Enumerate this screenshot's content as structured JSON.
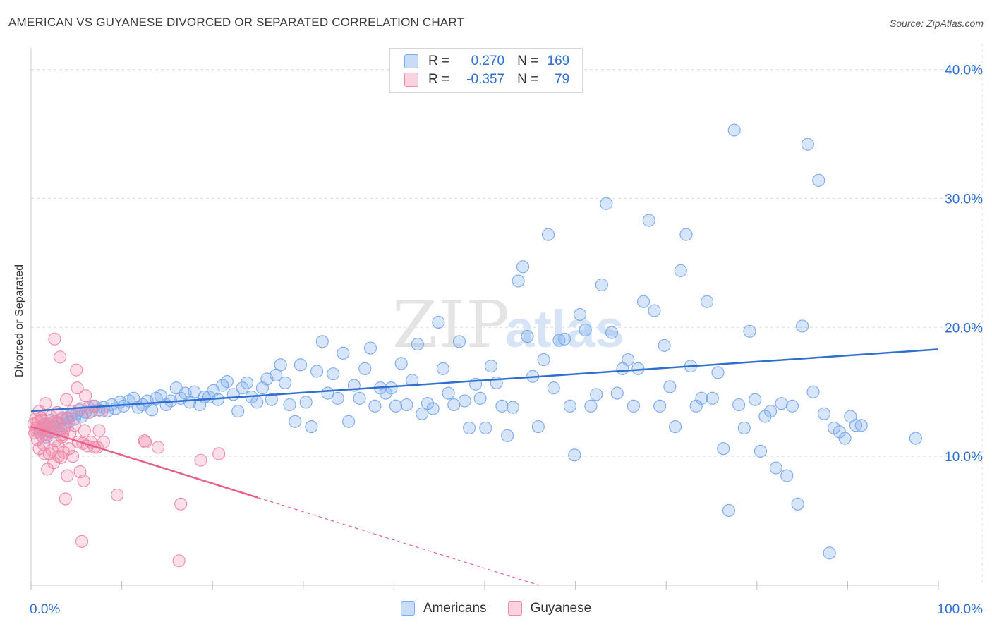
{
  "title": "AMERICAN VS GUYANESE DIVORCED OR SEPARATED CORRELATION CHART",
  "source": "Source: ZipAtlas.com",
  "watermark": {
    "zip": "ZIP",
    "atlas": "atlas"
  },
  "colors": {
    "blue": "#7aaaf0",
    "blue_line": "#2f6fd0",
    "pink": "#f08aaa",
    "pink_line": "#e8608a",
    "grid": "#dddddd"
  },
  "stats": [
    {
      "key": "R =",
      "r": "0.270",
      "nk": "N =",
      "n": "169",
      "color": "#7aaaf0"
    },
    {
      "key": "R =",
      "r": "-0.357",
      "nk": "N =",
      "n": "79",
      "color": "#f08aaa"
    }
  ],
  "legend": [
    {
      "label": "Americans",
      "color": "#7aaaf0"
    },
    {
      "label": "Guyanese",
      "color": "#f08aaa"
    }
  ],
  "chart_data": {
    "type": "scatter",
    "title": "AMERICAN VS GUYANESE DIVORCED OR SEPARATED CORRELATION CHART",
    "xlabel": "",
    "ylabel": "Divorced or Separated",
    "xlim": [
      0,
      100
    ],
    "ylim": [
      0,
      42
    ],
    "x_tick_labels": [
      {
        "value": 0,
        "label": "0.0%"
      },
      {
        "value": 100,
        "label": "100.0%"
      }
    ],
    "y_tick_labels": [
      {
        "value": 10,
        "label": "10.0%"
      },
      {
        "value": 20,
        "label": "20.0%"
      },
      {
        "value": 30,
        "label": "30.0%"
      },
      {
        "value": 40,
        "label": "40.0%"
      }
    ],
    "grid": true,
    "series": [
      {
        "name": "Americans",
        "color": "#7aaaf0",
        "trend": {
          "x": [
            0,
            100
          ],
          "y": [
            13.5,
            18.3
          ],
          "dashed_from": null
        },
        "points": [
          [
            1.0,
            11.8
          ],
          [
            1.2,
            12.2
          ],
          [
            1.5,
            12.5
          ],
          [
            1.7,
            11.5
          ],
          [
            2.0,
            12.0
          ],
          [
            2.2,
            12.8
          ],
          [
            2.5,
            12.3
          ],
          [
            2.7,
            11.9
          ],
          [
            3.0,
            12.6
          ],
          [
            3.3,
            12.1
          ],
          [
            3.5,
            12.9
          ],
          [
            3.8,
            12.4
          ],
          [
            4.0,
            13.0
          ],
          [
            4.2,
            12.7
          ],
          [
            4.5,
            13.2
          ],
          [
            4.8,
            12.9
          ],
          [
            5.0,
            13.3
          ],
          [
            5.3,
            13.6
          ],
          [
            5.6,
            13.1
          ],
          [
            6.0,
            13.4
          ],
          [
            6.3,
            13.8
          ],
          [
            6.7,
            13.5
          ],
          [
            7.0,
            13.9
          ],
          [
            7.5,
            13.6
          ],
          [
            8.0,
            13.8
          ],
          [
            8.4,
            13.5
          ],
          [
            8.9,
            14.0
          ],
          [
            9.3,
            13.7
          ],
          [
            9.8,
            14.2
          ],
          [
            10.2,
            13.9
          ],
          [
            10.8,
            14.3
          ],
          [
            11.3,
            14.5
          ],
          [
            11.8,
            13.8
          ],
          [
            12.3,
            14.0
          ],
          [
            12.8,
            14.3
          ],
          [
            13.3,
            13.6
          ],
          [
            13.8,
            14.5
          ],
          [
            14.3,
            14.7
          ],
          [
            14.9,
            14.0
          ],
          [
            15.4,
            14.3
          ],
          [
            16.0,
            15.3
          ],
          [
            16.5,
            14.5
          ],
          [
            17.0,
            14.9
          ],
          [
            17.5,
            14.2
          ],
          [
            18.0,
            15.0
          ],
          [
            18.6,
            14.0
          ],
          [
            19.1,
            14.6
          ],
          [
            19.6,
            14.6
          ],
          [
            20.1,
            15.1
          ],
          [
            20.6,
            14.4
          ],
          [
            21.1,
            15.5
          ],
          [
            21.6,
            15.8
          ],
          [
            22.3,
            14.8
          ],
          [
            22.8,
            13.5
          ],
          [
            23.3,
            15.3
          ],
          [
            23.8,
            15.7
          ],
          [
            24.3,
            14.6
          ],
          [
            24.9,
            14.2
          ],
          [
            25.5,
            15.3
          ],
          [
            26.0,
            16.0
          ],
          [
            26.5,
            14.4
          ],
          [
            27.0,
            16.3
          ],
          [
            27.5,
            17.1
          ],
          [
            28.0,
            15.7
          ],
          [
            28.5,
            14.0
          ],
          [
            29.1,
            12.7
          ],
          [
            29.7,
            17.1
          ],
          [
            30.3,
            14.2
          ],
          [
            30.9,
            12.3
          ],
          [
            31.5,
            16.6
          ],
          [
            32.1,
            18.9
          ],
          [
            32.7,
            14.9
          ],
          [
            33.3,
            16.4
          ],
          [
            33.8,
            14.5
          ],
          [
            34.4,
            18.0
          ],
          [
            35.0,
            12.7
          ],
          [
            35.6,
            15.5
          ],
          [
            36.2,
            14.5
          ],
          [
            36.8,
            16.8
          ],
          [
            37.4,
            18.4
          ],
          [
            37.9,
            13.9
          ],
          [
            38.5,
            15.3
          ],
          [
            39.1,
            14.9
          ],
          [
            39.7,
            15.3
          ],
          [
            40.2,
            13.9
          ],
          [
            40.8,
            17.2
          ],
          [
            41.4,
            14.0
          ],
          [
            42.0,
            15.9
          ],
          [
            42.6,
            18.7
          ],
          [
            43.1,
            13.3
          ],
          [
            43.7,
            14.1
          ],
          [
            44.3,
            13.7
          ],
          [
            44.9,
            20.4
          ],
          [
            45.4,
            16.8
          ],
          [
            46.0,
            14.9
          ],
          [
            46.6,
            14.0
          ],
          [
            47.2,
            18.9
          ],
          [
            47.8,
            14.3
          ],
          [
            48.3,
            12.2
          ],
          [
            49.0,
            15.6
          ],
          [
            49.5,
            14.5
          ],
          [
            50.1,
            12.2
          ],
          [
            50.7,
            17.0
          ],
          [
            51.3,
            15.7
          ],
          [
            51.9,
            13.9
          ],
          [
            52.5,
            11.6
          ],
          [
            53.1,
            13.8
          ],
          [
            53.7,
            23.6
          ],
          [
            54.2,
            24.7
          ],
          [
            54.7,
            19.3
          ],
          [
            55.3,
            16.2
          ],
          [
            55.9,
            12.3
          ],
          [
            56.5,
            17.5
          ],
          [
            57.0,
            27.2
          ],
          [
            57.6,
            15.3
          ],
          [
            58.2,
            19.0
          ],
          [
            58.8,
            19.1
          ],
          [
            59.4,
            13.9
          ],
          [
            59.9,
            10.1
          ],
          [
            60.5,
            21.0
          ],
          [
            61.1,
            19.8
          ],
          [
            61.7,
            13.9
          ],
          [
            62.3,
            14.8
          ],
          [
            62.9,
            23.3
          ],
          [
            63.4,
            29.6
          ],
          [
            64.0,
            19.6
          ],
          [
            64.6,
            14.9
          ],
          [
            65.2,
            16.8
          ],
          [
            65.8,
            17.5
          ],
          [
            66.4,
            13.9
          ],
          [
            66.9,
            16.8
          ],
          [
            67.5,
            22.0
          ],
          [
            68.1,
            28.3
          ],
          [
            68.7,
            21.3
          ],
          [
            69.3,
            13.9
          ],
          [
            69.8,
            18.6
          ],
          [
            70.4,
            15.4
          ],
          [
            71.0,
            12.3
          ],
          [
            71.6,
            24.4
          ],
          [
            72.2,
            27.2
          ],
          [
            72.7,
            17.0
          ],
          [
            73.3,
            13.9
          ],
          [
            73.9,
            14.5
          ],
          [
            74.5,
            22.0
          ],
          [
            75.1,
            14.5
          ],
          [
            75.7,
            16.5
          ],
          [
            76.3,
            10.6
          ],
          [
            76.9,
            5.8
          ],
          [
            77.5,
            35.3
          ],
          [
            78.0,
            14.0
          ],
          [
            78.6,
            12.2
          ],
          [
            79.2,
            19.7
          ],
          [
            79.8,
            14.4
          ],
          [
            80.4,
            10.4
          ],
          [
            80.9,
            13.1
          ],
          [
            81.5,
            13.5
          ],
          [
            82.1,
            9.1
          ],
          [
            82.7,
            14.1
          ],
          [
            83.3,
            8.5
          ],
          [
            83.9,
            13.9
          ],
          [
            84.5,
            6.3
          ],
          [
            85.0,
            20.1
          ],
          [
            85.6,
            34.2
          ],
          [
            86.2,
            15.0
          ],
          [
            86.8,
            31.4
          ],
          [
            87.4,
            13.3
          ],
          [
            88.0,
            2.5
          ],
          [
            88.5,
            12.2
          ],
          [
            89.1,
            11.9
          ],
          [
            89.7,
            11.4
          ],
          [
            90.3,
            13.1
          ],
          [
            90.9,
            12.4
          ],
          [
            91.5,
            12.4
          ],
          [
            97.5,
            11.4
          ]
        ]
      },
      {
        "name": "Guyanese",
        "color": "#f08aaa",
        "trend": {
          "x": [
            0,
            25,
            56
          ],
          "y": [
            12.3,
            6.8,
            0
          ],
          "dashed_from": 25
        },
        "points": [
          [
            0.3,
            12.5
          ],
          [
            0.4,
            11.8
          ],
          [
            0.5,
            12.9
          ],
          [
            0.6,
            12.2
          ],
          [
            0.7,
            11.3
          ],
          [
            0.8,
            12.7
          ],
          [
            0.9,
            10.6
          ],
          [
            1.0,
            12.0
          ],
          [
            1.1,
            13.0
          ],
          [
            1.2,
            11.6
          ],
          [
            1.3,
            12.4
          ],
          [
            1.4,
            10.9
          ],
          [
            1.5,
            12.1
          ],
          [
            1.6,
            14.1
          ],
          [
            1.7,
            11.7
          ],
          [
            1.8,
            9.0
          ],
          [
            1.9,
            12.5
          ],
          [
            2.0,
            10.2
          ],
          [
            2.1,
            11.9
          ],
          [
            2.2,
            13.1
          ],
          [
            2.3,
            10.5
          ],
          [
            2.4,
            12.3
          ],
          [
            2.5,
            9.5
          ],
          [
            2.6,
            19.1
          ],
          [
            2.7,
            11.2
          ],
          [
            2.8,
            12.6
          ],
          [
            2.9,
            13.4
          ],
          [
            3.0,
            10.8
          ],
          [
            3.1,
            12.0
          ],
          [
            3.2,
            17.7
          ],
          [
            3.3,
            9.9
          ],
          [
            3.4,
            11.5
          ],
          [
            3.5,
            13.0
          ],
          [
            3.6,
            10.3
          ],
          [
            3.7,
            12.2
          ],
          [
            3.8,
            6.7
          ],
          [
            3.9,
            14.4
          ],
          [
            4.0,
            8.5
          ],
          [
            4.1,
            12.9
          ],
          [
            4.2,
            10.6
          ],
          [
            4.3,
            11.8
          ],
          [
            4.5,
            13.5
          ],
          [
            4.6,
            10.0
          ],
          [
            4.8,
            12.4
          ],
          [
            5.0,
            16.7
          ],
          [
            5.1,
            15.3
          ],
          [
            5.2,
            11.1
          ],
          [
            5.4,
            8.8
          ],
          [
            5.5,
            13.7
          ],
          [
            5.6,
            3.4
          ],
          [
            5.7,
            11.0
          ],
          [
            5.8,
            8.1
          ],
          [
            5.9,
            12.0
          ],
          [
            6.0,
            14.7
          ],
          [
            6.2,
            10.8
          ],
          [
            6.4,
            13.4
          ],
          [
            6.6,
            11.1
          ],
          [
            6.8,
            13.9
          ],
          [
            7.0,
            10.7
          ],
          [
            7.3,
            10.7
          ],
          [
            7.5,
            12.0
          ],
          [
            7.8,
            13.5
          ],
          [
            8.0,
            11.1
          ],
          [
            9.5,
            7.0
          ],
          [
            12.5,
            11.2
          ],
          [
            12.6,
            11.1
          ],
          [
            14.0,
            10.7
          ],
          [
            16.3,
            1.9
          ],
          [
            16.5,
            6.3
          ],
          [
            18.7,
            9.7
          ],
          [
            20.7,
            10.2
          ],
          [
            0.5,
            12.0
          ],
          [
            0.9,
            13.5
          ],
          [
            1.2,
            12.8
          ],
          [
            1.5,
            10.2
          ],
          [
            2.0,
            11.9
          ],
          [
            2.6,
            12.7
          ],
          [
            3.0,
            10.0
          ],
          [
            3.5,
            11.7
          ]
        ]
      }
    ]
  }
}
